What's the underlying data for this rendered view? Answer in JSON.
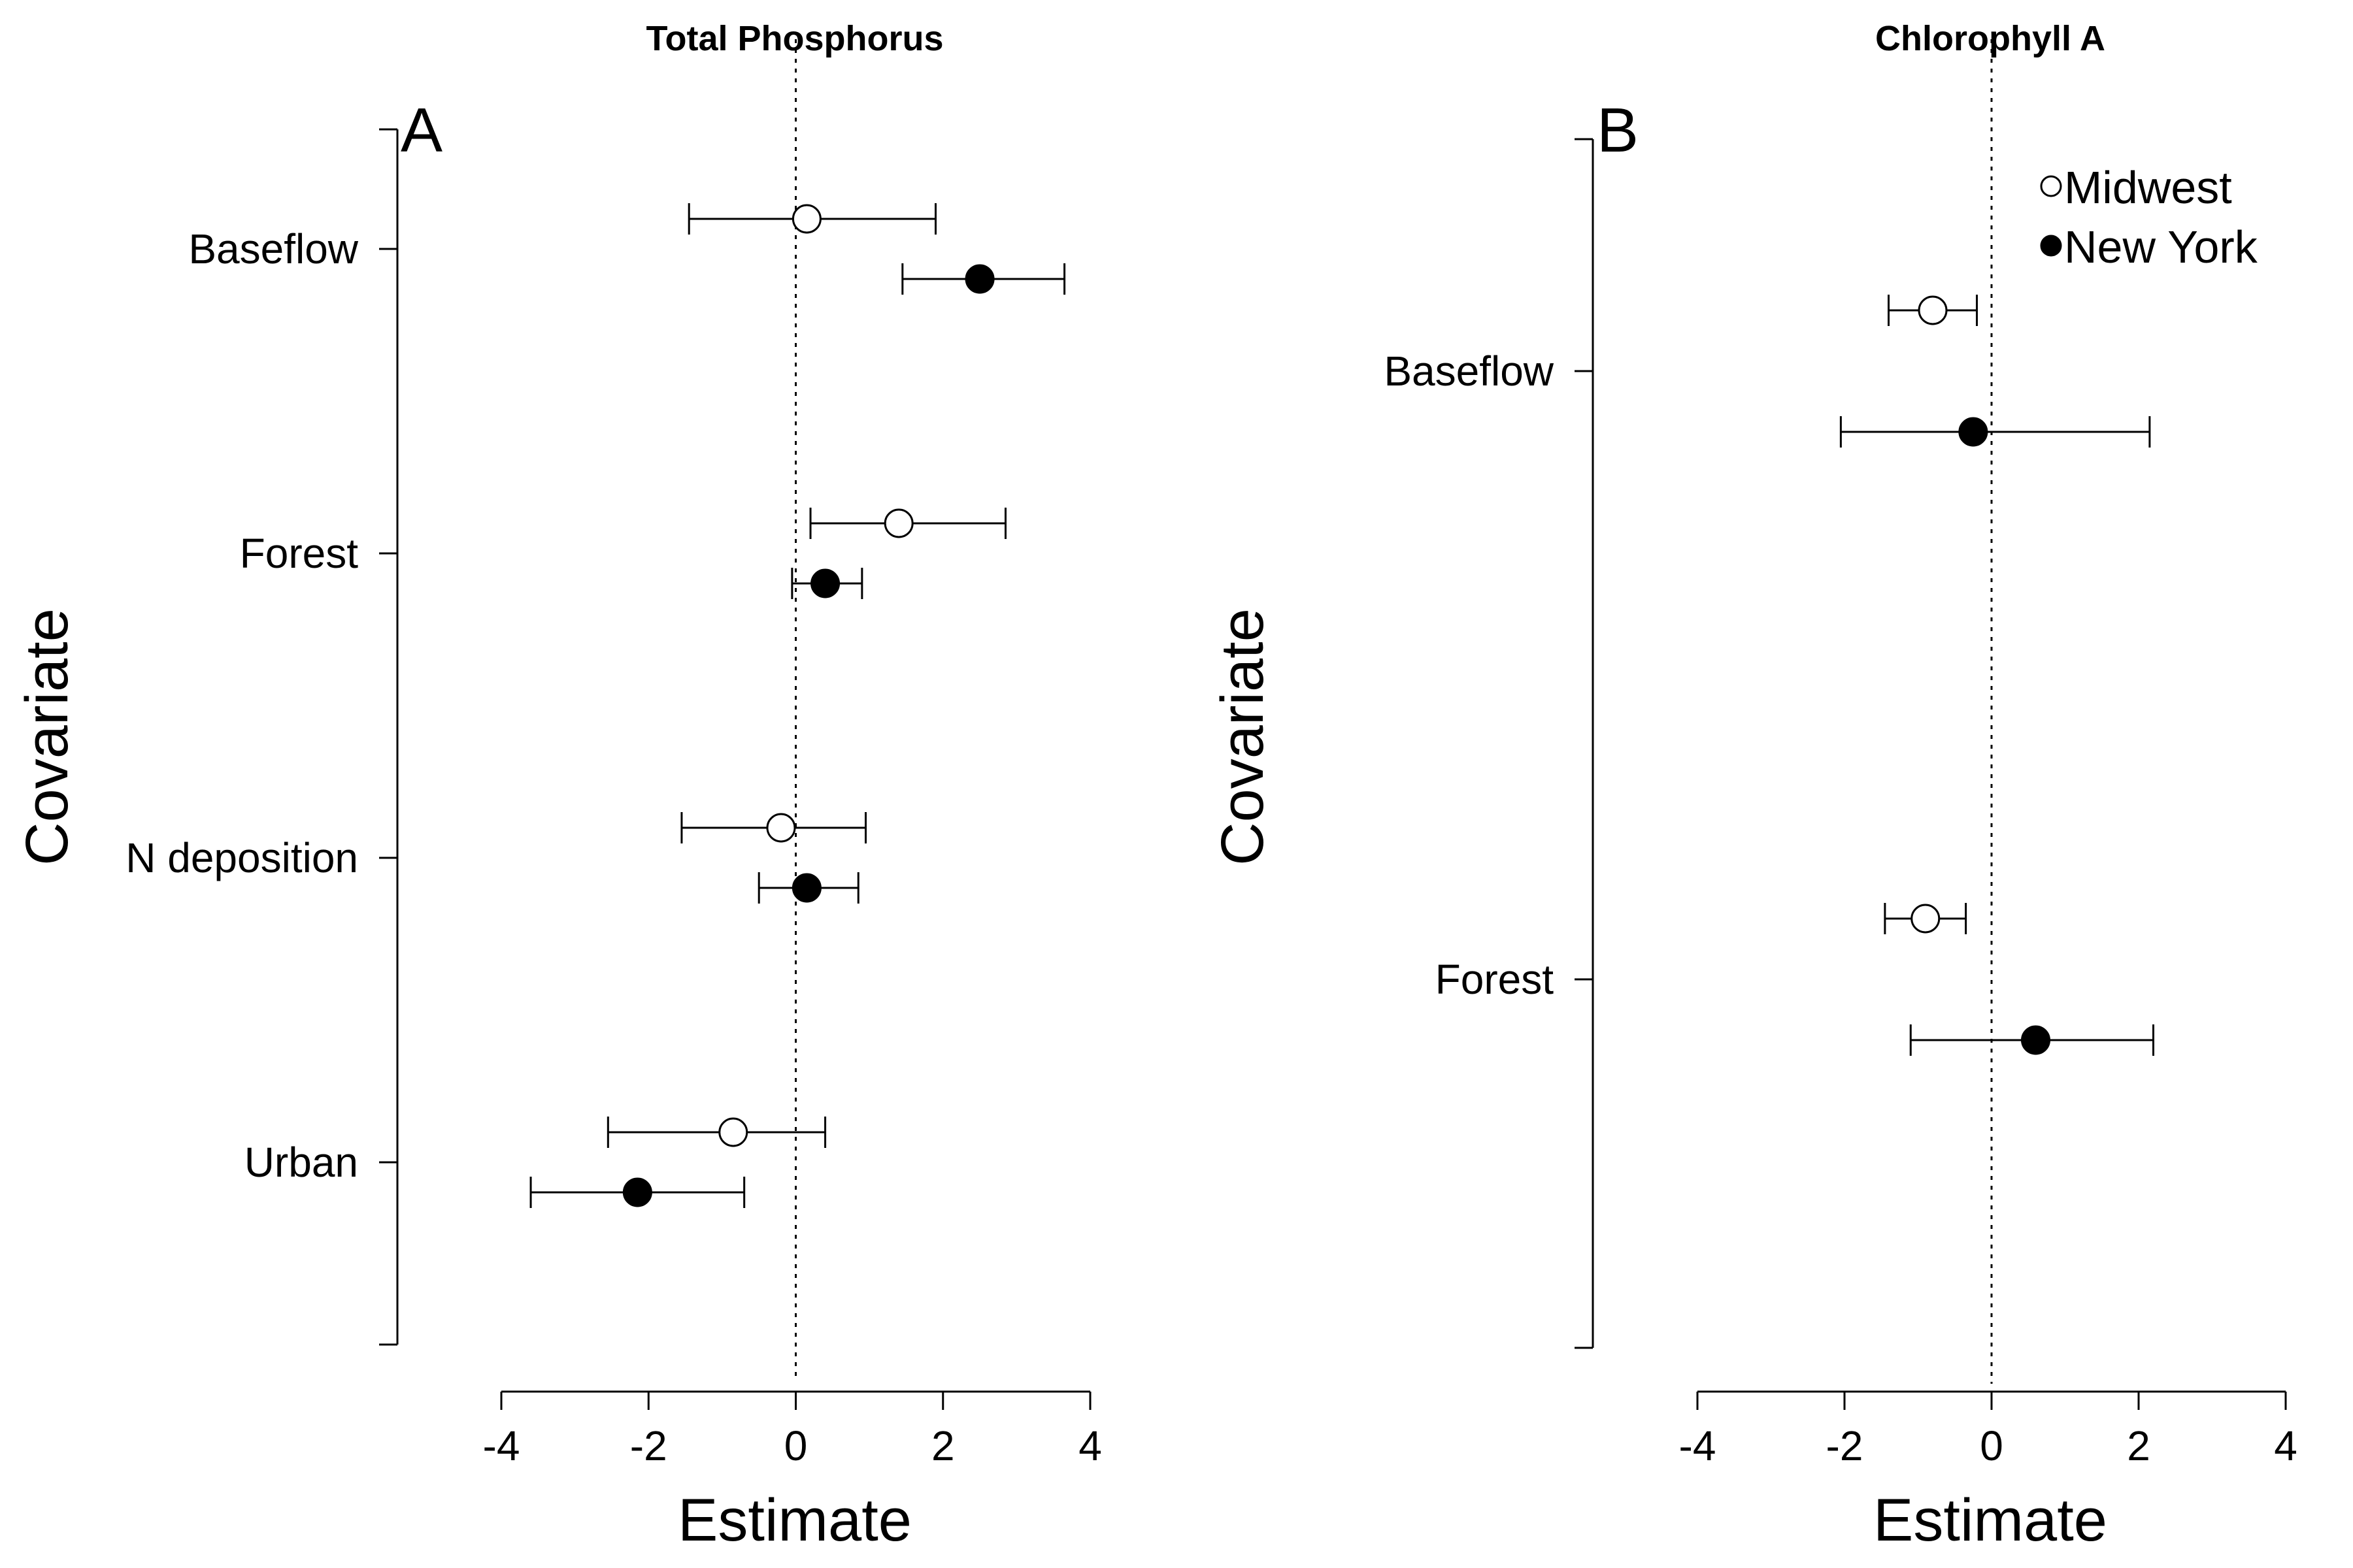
{
  "chart_data": [
    {
      "type": "scatter",
      "title": "Total Phosphorus",
      "panel_label": "A",
      "xlabel": "Estimate",
      "ylabel": "Covariate",
      "xlim": [
        -4,
        4
      ],
      "xticks": [
        "-4",
        "-2",
        "0",
        "2",
        "4"
      ],
      "reference_line_x": 0,
      "categories": [
        "Baseflow",
        "Forest",
        "N deposition",
        "Urban"
      ],
      "series": [
        {
          "name": "Midwest",
          "marker": "open-circle",
          "values": [
            0.15,
            1.4,
            -0.2,
            -0.85
          ],
          "lower": [
            -1.45,
            0.2,
            -1.55,
            -2.55
          ],
          "upper": [
            1.9,
            2.85,
            0.95,
            0.4
          ]
        },
        {
          "name": "New York",
          "marker": "filled-circle",
          "values": [
            2.5,
            0.4,
            0.15,
            -2.15
          ],
          "lower": [
            1.45,
            -0.05,
            -0.5,
            -3.6
          ],
          "upper": [
            3.65,
            0.9,
            0.85,
            -0.7
          ]
        }
      ],
      "legend": "none"
    },
    {
      "type": "scatter",
      "title": "Chlorophyll A",
      "panel_label": "B",
      "xlabel": "Estimate",
      "ylabel": "Covariate",
      "xlim": [
        -4,
        4
      ],
      "xticks": [
        "-4",
        "-2",
        "0",
        "2",
        "4"
      ],
      "reference_line_x": 0,
      "categories": [
        "Baseflow",
        "Forest"
      ],
      "series": [
        {
          "name": "Midwest",
          "marker": "open-circle",
          "values": [
            -0.8,
            -0.9
          ],
          "lower": [
            -1.4,
            -1.45
          ],
          "upper": [
            -0.2,
            -0.35
          ]
        },
        {
          "name": "New York",
          "marker": "filled-circle",
          "values": [
            -0.25,
            0.6
          ],
          "lower": [
            -2.05,
            -1.1
          ],
          "upper": [
            2.15,
            2.2
          ]
        }
      ],
      "legend": "top-right"
    }
  ]
}
